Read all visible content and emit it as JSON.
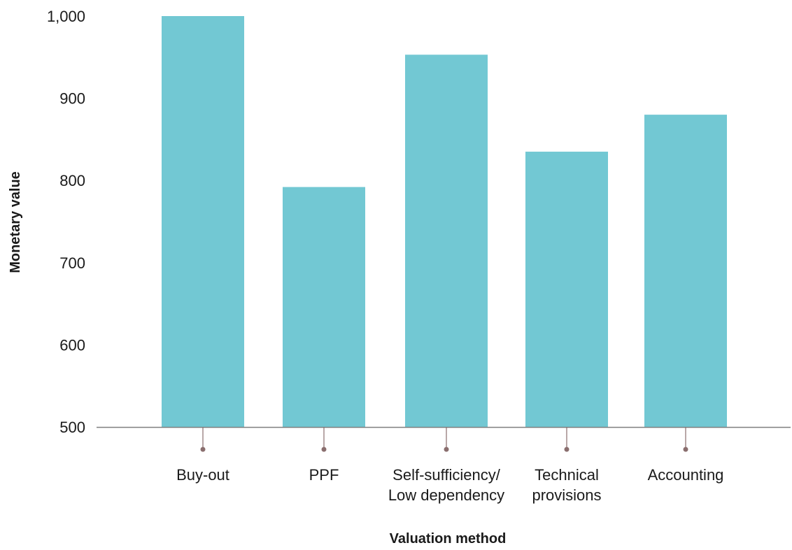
{
  "chart_data": {
    "type": "bar",
    "title": "",
    "xlabel": "Valuation method",
    "ylabel": "Monetary value",
    "ylim": [
      500,
      1000
    ],
    "yticks": [
      500,
      600,
      700,
      800,
      900,
      1000
    ],
    "ytick_labels": [
      "500",
      "600",
      "700",
      "800",
      "900",
      "1,000"
    ],
    "categories": [
      [
        "Buy-out"
      ],
      [
        "PPF"
      ],
      [
        "Self-sufficiency/",
        "Low dependency"
      ],
      [
        "Technical",
        "provisions"
      ],
      [
        "Accounting"
      ]
    ],
    "values": [
      1000,
      792,
      953,
      835,
      880
    ],
    "bar_color": "#72c8d3",
    "axis_color": "#7f7f7f",
    "tick_marker_color": "#8a6e6e",
    "grid": false,
    "legend": "none"
  }
}
